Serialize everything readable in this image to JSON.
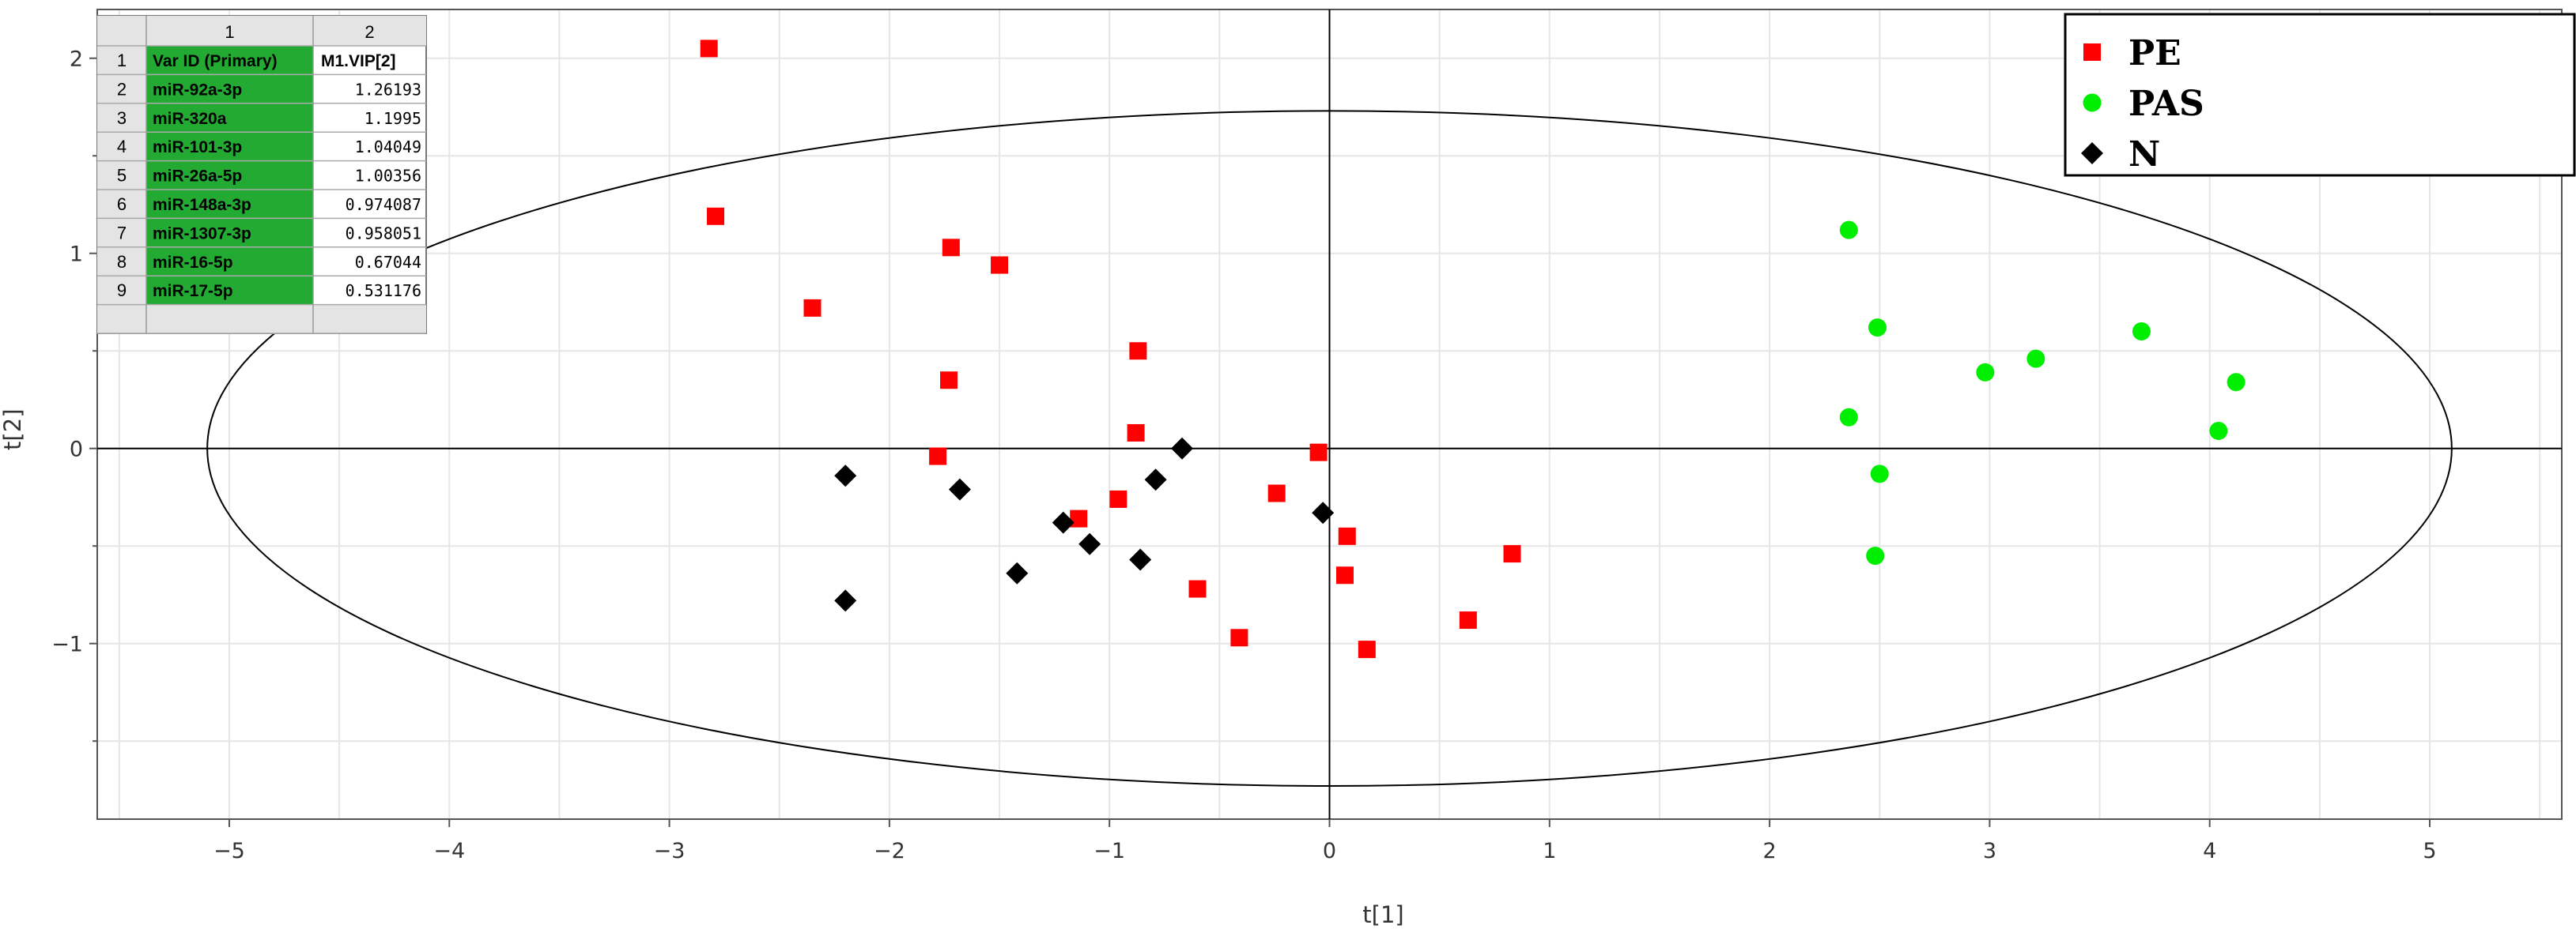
{
  "chart_data": {
    "type": "scatter",
    "title": "",
    "xlabel": "t[1]",
    "ylabel": "t[2]",
    "xlim": [
      -5.6,
      5.6
    ],
    "ylim": [
      -1.9,
      2.25
    ],
    "grid": true,
    "x_ticks": [
      "-5",
      "-4",
      "-3",
      "-2",
      "-1",
      "0",
      "1",
      "2",
      "3",
      "4",
      "5"
    ],
    "y_ticks": [
      "-1",
      "0",
      "1",
      "2"
    ],
    "ellipse": {
      "cx": 0,
      "cy": 0,
      "rx": 5.1,
      "ry": 1.73
    },
    "legend": {
      "position": "top-right"
    },
    "series": [
      {
        "name": "PE",
        "marker": "square",
        "color": "#ff0000",
        "points": [
          [
            -2.82,
            2.05
          ],
          [
            -2.79,
            1.19
          ],
          [
            -2.35,
            0.72
          ],
          [
            -1.72,
            1.03
          ],
          [
            -1.5,
            0.94
          ],
          [
            -1.73,
            0.35
          ],
          [
            -0.87,
            0.5
          ],
          [
            -1.78,
            -0.04
          ],
          [
            -0.88,
            0.08
          ],
          [
            -0.05,
            -0.02
          ],
          [
            -1.14,
            -0.36
          ],
          [
            -0.96,
            -0.26
          ],
          [
            -0.24,
            -0.23
          ],
          [
            -0.6,
            -0.72
          ],
          [
            0.08,
            -0.45
          ],
          [
            0.07,
            -0.65
          ],
          [
            0.83,
            -0.54
          ],
          [
            0.63,
            -0.88
          ],
          [
            -0.41,
            -0.97
          ],
          [
            0.17,
            -1.03
          ]
        ]
      },
      {
        "name": "PAS",
        "marker": "circle",
        "color": "#00ee00",
        "points": [
          [
            2.36,
            1.12
          ],
          [
            2.49,
            0.62
          ],
          [
            3.21,
            0.46
          ],
          [
            3.69,
            0.6
          ],
          [
            2.98,
            0.39
          ],
          [
            4.12,
            0.34
          ],
          [
            2.36,
            0.16
          ],
          [
            4.04,
            0.09
          ],
          [
            2.5,
            -0.13
          ],
          [
            2.48,
            -0.55
          ]
        ]
      },
      {
        "name": "N",
        "marker": "diamond",
        "color": "#000000",
        "points": [
          [
            -0.67,
            0.0
          ],
          [
            -2.2,
            -0.14
          ],
          [
            -1.68,
            -0.21
          ],
          [
            -0.79,
            -0.16
          ],
          [
            -0.03,
            -0.33
          ],
          [
            -1.21,
            -0.38
          ],
          [
            -1.09,
            -0.49
          ],
          [
            -1.42,
            -0.64
          ],
          [
            -0.86,
            -0.57
          ],
          [
            -2.2,
            -0.78
          ]
        ]
      }
    ]
  },
  "table": {
    "column_numbers": [
      "1",
      "2"
    ],
    "header": {
      "var_id": "Var ID (Primary)",
      "vip": "M1.VIP[2]"
    },
    "rows": [
      {
        "index": "1",
        "var_id": "Var ID (Primary)",
        "vip": "M1.VIP[2]"
      },
      {
        "index": "2",
        "var_id": "miR-92a-3p",
        "vip": "1.26193"
      },
      {
        "index": "3",
        "var_id": "miR-320a",
        "vip": "1.1995"
      },
      {
        "index": "4",
        "var_id": "miR-101-3p",
        "vip": "1.04049"
      },
      {
        "index": "5",
        "var_id": "miR-26a-5p",
        "vip": "1.00356"
      },
      {
        "index": "6",
        "var_id": "miR-148a-3p",
        "vip": "0.974087"
      },
      {
        "index": "7",
        "var_id": "miR-1307-3p",
        "vip": "0.958051"
      },
      {
        "index": "8",
        "var_id": "miR-16-5p",
        "vip": "0.67044"
      },
      {
        "index": "9",
        "var_id": "miR-17-5p",
        "vip": "0.531176"
      }
    ],
    "colors": {
      "green_cell": "#22aa33",
      "header_bg": "#e4e4e4"
    }
  }
}
